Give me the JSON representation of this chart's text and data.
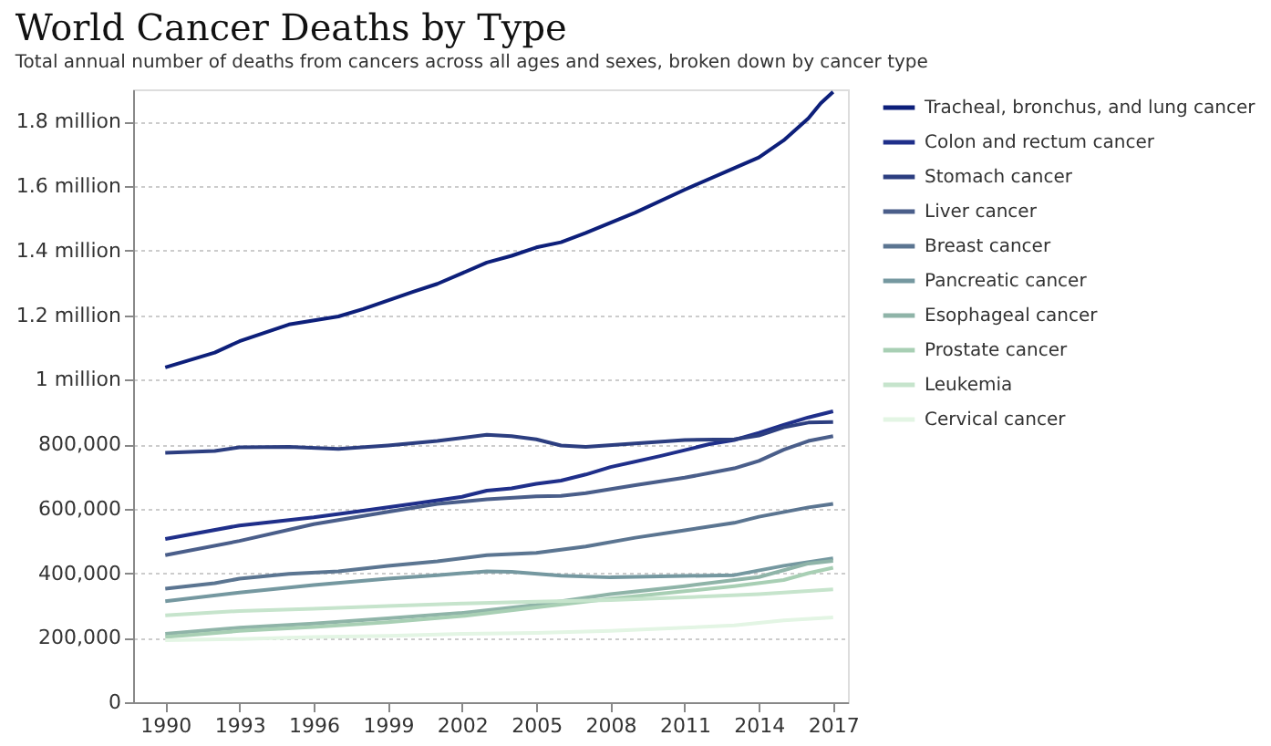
{
  "chart_data": {
    "type": "line",
    "title": "World Cancer Deaths by Type",
    "subtitle": "Total annual number of deaths from cancers across all ages and sexes, broken down by cancer type",
    "xlim": [
      1988.7,
      2017.6
    ],
    "xticks": [
      1990,
      1993,
      1996,
      1999,
      2002,
      2005,
      2008,
      2011,
      2014,
      2017
    ],
    "ylim": [
      0,
      1900000
    ],
    "yticks": [
      0,
      {
        "value": 200000,
        "label": "200,000"
      },
      {
        "value": 400000,
        "label": "400,000"
      },
      {
        "value": 600000,
        "label": "600,000"
      },
      {
        "value": 800000,
        "label": "800,000"
      },
      {
        "value": 1000000,
        "label": "1 million"
      },
      {
        "value": 1200000,
        "label": "1.2 million"
      },
      {
        "value": 1400000,
        "label": "1.4 million"
      },
      {
        "value": 1600000,
        "label": "1.6 million"
      },
      {
        "value": 1800000,
        "label": "1.8 million"
      }
    ],
    "grid": "y",
    "legend": "right",
    "marker": "none",
    "line_style": "solid",
    "series": [
      {
        "name": "Tracheal, bronchus, and lung cancer",
        "color": "#0d1f7a",
        "x": [
          1990,
          1992,
          1993,
          1995,
          1997,
          1998,
          2000,
          2001,
          2003,
          2004,
          2005,
          2006,
          2007,
          2009,
          2011,
          2013,
          2014,
          2015,
          2016,
          2016.5,
          2017
        ],
        "values": [
          1038000,
          1084000,
          1119000,
          1171000,
          1196000,
          1219000,
          1272000,
          1297000,
          1363000,
          1384000,
          1410000,
          1426000,
          1455000,
          1518000,
          1589000,
          1656000,
          1689000,
          1742000,
          1810000,
          1857000,
          1892000
        ]
      },
      {
        "name": "Colon and rectum cancer",
        "color": "#1f2f8a",
        "x": [
          1990,
          1993,
          1996,
          1998,
          2000,
          2002,
          2003,
          2004,
          2005,
          2006,
          2007,
          2008,
          2010,
          2012,
          2013,
          2014,
          2015,
          2016,
          2017
        ],
        "values": [
          506000,
          548000,
          573000,
          594000,
          615000,
          637000,
          656000,
          663000,
          677000,
          687000,
          706000,
          729000,
          763000,
          800000,
          813000,
          835000,
          860000,
          883000,
          902000
        ]
      },
      {
        "name": "Stomach cancer",
        "color": "#2c3e80",
        "x": [
          1990,
          1992,
          1993,
          1995,
          1997,
          1999,
          2001,
          2003,
          2004,
          2005,
          2006,
          2007,
          2009,
          2011,
          2013,
          2014,
          2015,
          2016,
          2017
        ],
        "values": [
          773000,
          779000,
          790000,
          792000,
          785000,
          796000,
          810000,
          829000,
          825000,
          815000,
          796000,
          792000,
          802000,
          813000,
          815000,
          827000,
          852000,
          867000,
          869000
        ]
      },
      {
        "name": "Liver cancer",
        "color": "#4a5e8a",
        "x": [
          1990,
          1993,
          1996,
          1999,
          2001,
          2003,
          2005,
          2006,
          2007,
          2009,
          2011,
          2013,
          2014,
          2015,
          2016,
          2017
        ],
        "values": [
          456000,
          500000,
          552000,
          590000,
          615000,
          629000,
          638000,
          640000,
          648000,
          673000,
          696000,
          725000,
          748000,
          783000,
          810000,
          825000
        ]
      },
      {
        "name": "Breast cancer",
        "color": "#5b7591",
        "x": [
          1990,
          1992,
          1993,
          1995,
          1997,
          1999,
          2001,
          2003,
          2005,
          2007,
          2009,
          2011,
          2013,
          2014,
          2016,
          2017
        ],
        "values": [
          352000,
          369000,
          383000,
          398000,
          406000,
          423000,
          437000,
          456000,
          463000,
          483000,
          510000,
          533000,
          556000,
          575000,
          604000,
          615000
        ]
      },
      {
        "name": "Pancreatic cancer",
        "color": "#7598a0",
        "x": [
          1990,
          1993,
          1996,
          1999,
          2001,
          2003,
          2004,
          2006,
          2008,
          2010,
          2013,
          2015,
          2017
        ],
        "values": [
          313000,
          340000,
          363000,
          383000,
          394000,
          406000,
          404000,
          392000,
          387000,
          390000,
          394000,
          423000,
          446000
        ]
      },
      {
        "name": "Esophageal cancer",
        "color": "#8fb4a8",
        "x": [
          1990,
          1993,
          1996,
          1999,
          2002,
          2005,
          2008,
          2011,
          2014,
          2016,
          2017
        ],
        "values": [
          212000,
          231000,
          244000,
          260000,
          277000,
          302000,
          335000,
          360000,
          388000,
          430000,
          438000
        ]
      },
      {
        "name": "Prostate cancer",
        "color": "#a8cfb4",
        "x": [
          1990,
          1993,
          1996,
          1999,
          2002,
          2005,
          2008,
          2011,
          2013,
          2015,
          2016,
          2017
        ],
        "values": [
          202000,
          221000,
          233000,
          248000,
          267000,
          294000,
          321000,
          344000,
          360000,
          379000,
          400000,
          417000
        ]
      },
      {
        "name": "Leukemia",
        "color": "#c6e4cc",
        "x": [
          1990,
          1993,
          1996,
          1999,
          2002,
          2005,
          2008,
          2011,
          2014,
          2017
        ],
        "values": [
          269000,
          283000,
          290000,
          298000,
          306000,
          312000,
          317000,
          325000,
          335000,
          350000
        ]
      },
      {
        "name": "Cervical cancer",
        "color": "#e3f5e4",
        "x": [
          1990,
          1993,
          1996,
          1999,
          2002,
          2005,
          2008,
          2011,
          2013,
          2015,
          2017
        ],
        "values": [
          192000,
          196000,
          202000,
          206000,
          212000,
          215000,
          221000,
          231000,
          238000,
          254000,
          263000
        ]
      }
    ]
  }
}
